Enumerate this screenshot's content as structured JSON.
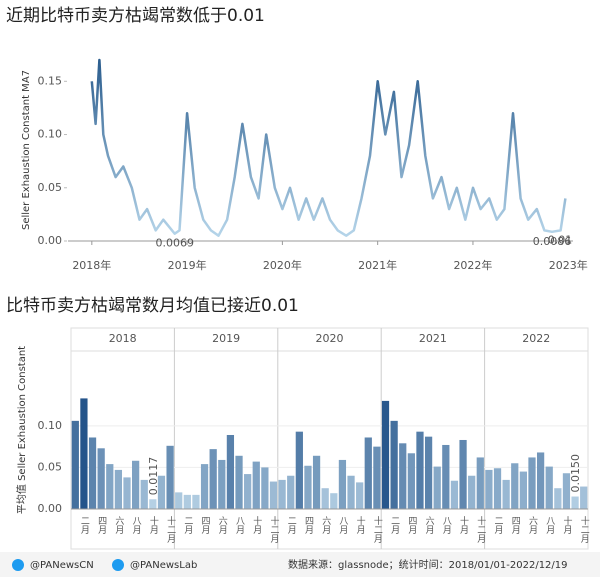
{
  "chart_data": [
    {
      "type": "line",
      "title": "近期比特币卖方枯竭常数低于0.01",
      "y_label": "Seller Exhaustion Constant MA7",
      "x": [
        2018.0,
        2018.04,
        2018.08,
        2018.12,
        2018.17,
        2018.25,
        2018.33,
        2018.42,
        2018.5,
        2018.58,
        2018.67,
        2018.75,
        2018.87,
        2018.92,
        2019.0,
        2019.08,
        2019.17,
        2019.25,
        2019.33,
        2019.42,
        2019.5,
        2019.58,
        2019.67,
        2019.75,
        2019.83,
        2019.92,
        2020.0,
        2020.08,
        2020.17,
        2020.25,
        2020.33,
        2020.42,
        2020.5,
        2020.58,
        2020.67,
        2020.75,
        2020.83,
        2020.92,
        2021.0,
        2021.08,
        2021.17,
        2021.25,
        2021.33,
        2021.42,
        2021.5,
        2021.58,
        2021.67,
        2021.75,
        2021.83,
        2021.92,
        2022.0,
        2022.08,
        2022.17,
        2022.25,
        2022.33,
        2022.42,
        2022.5,
        2022.58,
        2022.67,
        2022.75,
        2022.83,
        2022.92,
        2022.97
      ],
      "series": [
        {
          "values": [
            0.15,
            0.11,
            0.17,
            0.1,
            0.08,
            0.06,
            0.07,
            0.05,
            0.02,
            0.03,
            0.01,
            0.02,
            0.0069,
            0.01,
            0.12,
            0.05,
            0.02,
            0.01,
            0.005,
            0.02,
            0.06,
            0.11,
            0.06,
            0.04,
            0.1,
            0.05,
            0.03,
            0.05,
            0.02,
            0.04,
            0.02,
            0.04,
            0.02,
            0.01,
            0.005,
            0.01,
            0.04,
            0.08,
            0.15,
            0.1,
            0.14,
            0.06,
            0.09,
            0.15,
            0.08,
            0.04,
            0.06,
            0.03,
            0.05,
            0.02,
            0.05,
            0.03,
            0.04,
            0.02,
            0.03,
            0.12,
            0.04,
            0.02,
            0.03,
            0.01,
            0.0086,
            0.01,
            0.04
          ]
        }
      ],
      "color_scale": [
        "#b9d8ec",
        "#2b5d8e"
      ],
      "xlim": [
        2017.75,
        2023.05
      ],
      "ylim": [
        0,
        0.17
      ],
      "xticks": [
        {
          "value": 2018,
          "label": "2018年"
        },
        {
          "value": 2019,
          "label": "2019年"
        },
        {
          "value": 2020,
          "label": "2020年"
        },
        {
          "value": 2021,
          "label": "2021年"
        },
        {
          "value": 2022,
          "label": "2022年"
        },
        {
          "value": 2023,
          "label": "2023年"
        }
      ],
      "yticks": [
        {
          "value": 0,
          "label": "0.00"
        },
        0.05,
        {
          "value": 0.1,
          "label": "0.10"
        },
        0.15
      ],
      "annotations": [
        {
          "text": "0.0069",
          "x": 2018.87,
          "y": 0.0069
        },
        {
          "text": "0.0086",
          "x": 2022.83,
          "y": 0.0086
        },
        {
          "text": "0.01",
          "x": 2023.0,
          "y": 0.01
        }
      ]
    },
    {
      "type": "bar",
      "title": "比特币卖方枯竭常数月均值已接近0.01",
      "y_label": "平均值 Seller Exhaustion Constant",
      "groups": [
        "2018",
        "2019",
        "2020",
        "2021",
        "2022"
      ],
      "categories": [
        null,
        "二月",
        null,
        "四月",
        null,
        "六月",
        null,
        "八月",
        null,
        "十月",
        null,
        "十二月",
        null,
        "二月",
        null,
        "四月",
        null,
        "六月",
        null,
        "八月",
        null,
        "十月",
        null,
        "十二月",
        null,
        "二月",
        null,
        "四月",
        null,
        "六月",
        null,
        "八月",
        null,
        "十月",
        null,
        "十二月",
        null,
        "二月",
        null,
        "四月",
        null,
        "六月",
        null,
        "八月",
        null,
        "十月",
        null,
        "十二月",
        null,
        "二月",
        null,
        "四月",
        null,
        "六月",
        null,
        "八月",
        null,
        "十月",
        null,
        "十二月"
      ],
      "values": [
        0.106,
        0.133,
        0.086,
        0.073,
        0.054,
        0.047,
        0.038,
        0.058,
        0.035,
        0.0117,
        0.04,
        0.076,
        0.02,
        0.017,
        0.017,
        0.054,
        0.072,
        0.059,
        0.089,
        0.064,
        0.042,
        0.057,
        0.05,
        0.033,
        0.035,
        0.04,
        0.093,
        0.052,
        0.064,
        0.025,
        0.019,
        0.059,
        0.04,
        0.032,
        0.086,
        0.075,
        0.13,
        0.106,
        0.079,
        0.067,
        0.093,
        0.087,
        0.051,
        0.077,
        0.034,
        0.083,
        0.04,
        0.062,
        0.047,
        0.049,
        0.035,
        0.055,
        0.045,
        0.062,
        0.068,
        0.051,
        0.025,
        0.043,
        0.015,
        0.027
      ],
      "value_labels": [
        null,
        null,
        null,
        null,
        null,
        null,
        null,
        null,
        null,
        "0.0117",
        null,
        null,
        null,
        null,
        null,
        null,
        null,
        null,
        null,
        null,
        null,
        null,
        null,
        null,
        null,
        null,
        null,
        null,
        null,
        null,
        null,
        null,
        null,
        null,
        null,
        null,
        null,
        null,
        null,
        null,
        null,
        null,
        null,
        null,
        null,
        null,
        null,
        null,
        null,
        null,
        null,
        null,
        null,
        null,
        null,
        null,
        null,
        null,
        "0.0150",
        null
      ],
      "color_scale": [
        "#c3dced",
        "#24548a"
      ],
      "ylim": [
        0,
        0.19
      ],
      "yticks": [
        {
          "value": 0,
          "label": "0.00"
        },
        0.05,
        {
          "value": 0.1,
          "label": "0.10"
        }
      ]
    }
  ],
  "footer": {
    "handles": [
      "@PANewsCN",
      "@PANewsLab"
    ],
    "source": "数据来源：glassnode；统计时间：2018/01/01-2022/12/19"
  }
}
